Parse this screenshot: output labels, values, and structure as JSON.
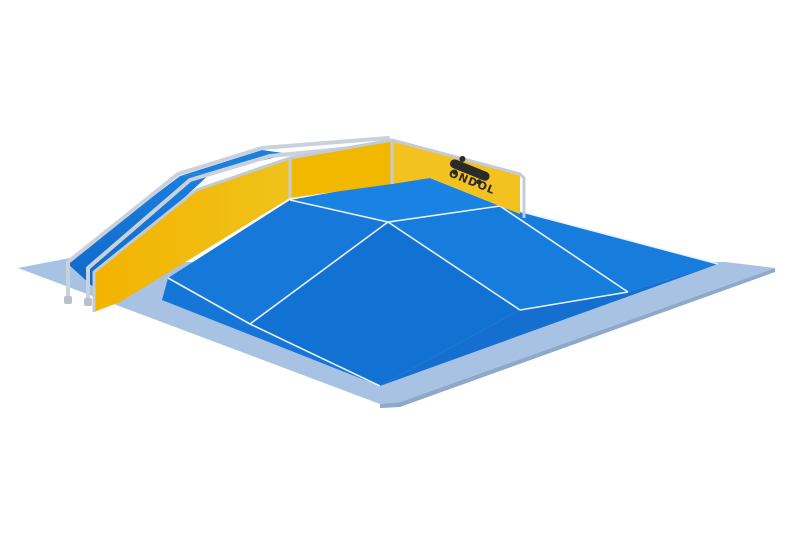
{
  "image": {
    "subject": "skatepark-pyramid-ramp-render",
    "colors": {
      "background": "#ffffff",
      "base_pad": "#a9c3e4",
      "base_pad_edge": "#8ea9cc",
      "ramp_blue": "#1477d8",
      "ramp_blue_dark": "#0f5fb8",
      "ramp_blue_light": "#1c86e6",
      "side_panel_yellow": "#f2b400",
      "side_panel_yellow_dark": "#e09a00",
      "coping_metal": "#c9d2dc",
      "line_white": "#e9f2fb"
    },
    "logo": {
      "text": "ONDOL",
      "icon_name": "skateboard-logo-icon"
    }
  }
}
